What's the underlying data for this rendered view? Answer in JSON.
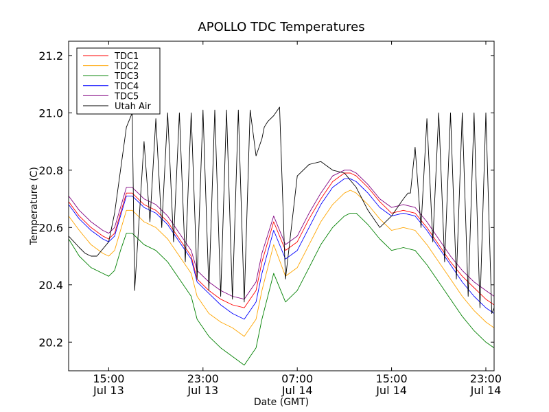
{
  "chart_data": {
    "type": "line",
    "title": "APOLLO TDC Temperatures",
    "xlabel": "Date (GMT)",
    "ylabel": "Temperature (C)",
    "xlim": [
      11.6,
      47.7
    ],
    "ylim": [
      20.1,
      21.25
    ],
    "x_unit": "hours since Jul 13 00:00 GMT",
    "x_ticks": [
      {
        "value": 15,
        "line1": "15:00",
        "line2": "Jul 13"
      },
      {
        "value": 23,
        "line1": "23:00",
        "line2": "Jul 13"
      },
      {
        "value": 31,
        "line1": "07:00",
        "line2": "Jul 14"
      },
      {
        "value": 39,
        "line1": "15:00",
        "line2": "Jul 14"
      },
      {
        "value": 47,
        "line1": "23:00",
        "line2": "Jul 14"
      }
    ],
    "y_ticks": [
      {
        "value": 20.2,
        "label": "20.2"
      },
      {
        "value": 20.4,
        "label": "20.4"
      },
      {
        "value": 20.6,
        "label": "20.6"
      },
      {
        "value": 20.8,
        "label": "20.8"
      },
      {
        "value": 21.0,
        "label": "21.0"
      },
      {
        "value": 21.2,
        "label": "21.2"
      }
    ],
    "legend_position": "top-left",
    "series": [
      {
        "name": "TDC1",
        "color": "#ff0000",
        "offset": 0.0,
        "x": [
          11.6,
          12.5,
          13.5,
          14.5,
          15.0,
          15.5,
          16.0,
          16.5,
          17.0,
          17.5,
          18.0,
          19.0,
          20.0,
          21.0,
          22.0,
          22.5,
          23.5,
          24.5,
          25.5,
          26.5,
          27.5,
          28.0,
          29.0,
          30.0,
          31.0,
          32.0,
          33.0,
          34.0,
          35.0,
          35.5,
          36.0,
          37.0,
          38.0,
          39.0,
          40.0,
          41.0,
          42.0,
          43.0,
          44.0,
          45.0,
          46.0,
          47.0,
          47.7
        ],
        "y": [
          20.69,
          20.64,
          20.6,
          20.57,
          20.56,
          20.58,
          20.65,
          20.72,
          20.72,
          20.7,
          20.68,
          20.66,
          20.62,
          20.56,
          20.5,
          20.42,
          20.38,
          20.35,
          20.33,
          20.32,
          20.38,
          20.48,
          20.62,
          20.52,
          20.55,
          20.63,
          20.7,
          20.76,
          20.79,
          20.79,
          20.78,
          20.74,
          20.69,
          20.65,
          20.66,
          20.65,
          20.6,
          20.54,
          20.48,
          20.43,
          20.39,
          20.35,
          20.33
        ]
      },
      {
        "name": "TDC2",
        "color": "#ffa500",
        "offset": 0.0,
        "x": [
          11.6,
          12.5,
          13.5,
          14.5,
          15.0,
          15.5,
          16.0,
          16.5,
          17.0,
          17.5,
          18.0,
          19.0,
          20.0,
          21.0,
          22.0,
          22.5,
          23.5,
          24.5,
          25.5,
          26.5,
          27.5,
          28.0,
          29.0,
          30.0,
          31.0,
          32.0,
          33.0,
          34.0,
          35.0,
          35.5,
          36.0,
          37.0,
          38.0,
          39.0,
          40.0,
          41.0,
          42.0,
          43.0,
          44.0,
          45.0,
          46.0,
          47.0,
          47.7
        ],
        "y": [
          20.64,
          20.59,
          20.54,
          20.51,
          20.5,
          20.52,
          20.59,
          20.66,
          20.66,
          20.64,
          20.62,
          20.6,
          20.56,
          20.5,
          20.44,
          20.36,
          20.3,
          20.27,
          20.25,
          20.22,
          20.28,
          20.38,
          20.54,
          20.43,
          20.46,
          20.54,
          20.62,
          20.68,
          20.72,
          20.73,
          20.72,
          20.68,
          20.63,
          20.59,
          20.6,
          20.59,
          20.54,
          20.48,
          20.42,
          20.36,
          20.31,
          20.27,
          20.25
        ]
      },
      {
        "name": "TDC3",
        "color": "#008000",
        "offset": 0.0,
        "x": [
          11.6,
          12.5,
          13.5,
          14.5,
          15.0,
          15.5,
          16.0,
          16.5,
          17.0,
          17.5,
          18.0,
          19.0,
          20.0,
          21.0,
          22.0,
          22.5,
          23.5,
          24.5,
          25.5,
          26.5,
          27.5,
          28.0,
          29.0,
          30.0,
          31.0,
          32.0,
          33.0,
          34.0,
          35.0,
          35.5,
          36.0,
          37.0,
          38.0,
          39.0,
          40.0,
          41.0,
          42.0,
          43.0,
          44.0,
          45.0,
          46.0,
          47.0,
          47.7
        ],
        "y": [
          20.56,
          20.5,
          20.46,
          20.44,
          20.43,
          20.45,
          20.52,
          20.58,
          20.58,
          20.56,
          20.54,
          20.52,
          20.48,
          20.42,
          20.36,
          20.28,
          20.22,
          20.18,
          20.15,
          20.12,
          20.18,
          20.28,
          20.44,
          20.34,
          20.38,
          20.46,
          20.54,
          20.6,
          20.64,
          20.65,
          20.65,
          20.61,
          20.56,
          20.52,
          20.53,
          20.52,
          20.47,
          20.41,
          20.35,
          20.29,
          20.24,
          20.2,
          20.18
        ]
      },
      {
        "name": "TDC4",
        "color": "#0000ff",
        "offset": 0.0,
        "x": [
          11.6,
          12.5,
          13.5,
          14.5,
          15.0,
          15.5,
          16.0,
          16.5,
          17.0,
          17.5,
          18.0,
          19.0,
          20.0,
          21.0,
          22.0,
          22.5,
          23.5,
          24.5,
          25.5,
          26.5,
          27.5,
          28.0,
          29.0,
          30.0,
          31.0,
          32.0,
          33.0,
          34.0,
          35.0,
          35.5,
          36.0,
          37.0,
          38.0,
          39.0,
          40.0,
          41.0,
          42.0,
          43.0,
          44.0,
          45.0,
          46.0,
          47.0,
          47.7
        ],
        "y": [
          20.68,
          20.63,
          20.59,
          20.56,
          20.55,
          20.57,
          20.64,
          20.71,
          20.71,
          20.69,
          20.67,
          20.65,
          20.61,
          20.55,
          20.49,
          20.41,
          20.37,
          20.33,
          20.3,
          20.28,
          20.34,
          20.44,
          20.59,
          20.49,
          20.52,
          20.6,
          20.68,
          20.74,
          20.77,
          20.77,
          20.76,
          20.72,
          20.67,
          20.64,
          20.65,
          20.64,
          20.59,
          20.53,
          20.47,
          20.41,
          20.36,
          20.32,
          20.3
        ]
      },
      {
        "name": "TDC5",
        "color": "#800080",
        "offset": 0.0,
        "x": [
          11.6,
          12.5,
          13.5,
          14.5,
          15.0,
          15.5,
          16.0,
          16.5,
          17.0,
          17.5,
          18.0,
          19.0,
          20.0,
          21.0,
          22.0,
          22.5,
          23.5,
          24.5,
          25.5,
          26.5,
          27.5,
          28.0,
          29.0,
          30.0,
          31.0,
          32.0,
          33.0,
          34.0,
          35.0,
          35.5,
          36.0,
          37.0,
          38.0,
          39.0,
          40.0,
          41.0,
          42.0,
          43.0,
          44.0,
          45.0,
          46.0,
          47.0,
          47.7
        ],
        "y": [
          20.71,
          20.66,
          20.62,
          20.59,
          20.58,
          20.6,
          20.67,
          20.74,
          20.74,
          20.72,
          20.7,
          20.68,
          20.64,
          20.58,
          20.52,
          20.45,
          20.41,
          20.38,
          20.36,
          20.35,
          20.41,
          20.51,
          20.64,
          20.54,
          20.57,
          20.65,
          20.72,
          20.78,
          20.8,
          20.8,
          20.79,
          20.75,
          20.7,
          20.67,
          20.68,
          20.67,
          20.62,
          20.56,
          20.5,
          20.45,
          20.41,
          20.38,
          20.36
        ]
      },
      {
        "name": "Utah Air",
        "color": "#000000",
        "offset": 0.0,
        "x": [
          11.6,
          12.5,
          13.0,
          13.5,
          14.0,
          15.0,
          15.5,
          16.0,
          16.5,
          17.0,
          17.2,
          18.0,
          18.5,
          19.0,
          19.5,
          20.0,
          20.5,
          21.0,
          21.5,
          22.0,
          22.5,
          23.0,
          23.5,
          24.0,
          24.5,
          25.0,
          25.5,
          26.0,
          26.5,
          27.0,
          27.5,
          28.0,
          28.2,
          28.5,
          29.0,
          29.5,
          30.0,
          31.0,
          32.0,
          33.0,
          34.0,
          35.0,
          36.0,
          37.0,
          38.0,
          39.0,
          40.0,
          40.4,
          40.6,
          41.0,
          41.5,
          42.0,
          42.5,
          43.0,
          43.5,
          44.0,
          44.5,
          45.0,
          45.5,
          46.0,
          46.5,
          47.0,
          47.5,
          47.7
        ],
        "y": [
          20.57,
          20.53,
          20.51,
          20.5,
          20.5,
          20.55,
          20.65,
          20.8,
          20.95,
          21.0,
          20.38,
          20.9,
          20.62,
          20.98,
          20.6,
          21.0,
          20.55,
          21.0,
          20.48,
          21.0,
          20.42,
          21.01,
          20.38,
          21.01,
          20.36,
          21.01,
          20.35,
          21.01,
          20.34,
          21.01,
          20.85,
          20.91,
          20.95,
          20.97,
          20.99,
          21.02,
          20.42,
          20.78,
          20.82,
          20.83,
          20.8,
          20.79,
          20.74,
          20.66,
          20.6,
          20.64,
          20.7,
          20.72,
          20.72,
          20.88,
          20.6,
          20.98,
          20.55,
          21.0,
          20.48,
          21.0,
          20.42,
          21.0,
          20.36,
          21.0,
          20.32,
          21.0,
          20.3,
          20.32
        ]
      }
    ]
  }
}
